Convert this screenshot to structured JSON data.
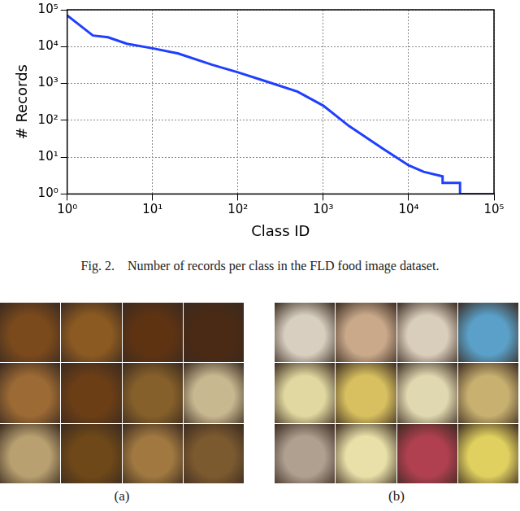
{
  "chart_data": {
    "type": "line",
    "x": [
      1,
      2,
      3,
      5,
      10,
      20,
      50,
      100,
      200,
      500,
      1000,
      2000,
      5000,
      10000,
      15000,
      25000,
      25000,
      40000,
      40000,
      100000
    ],
    "values": [
      70000,
      20000,
      18000,
      12000,
      9000,
      6500,
      3200,
      2000,
      1200,
      600,
      250,
      70,
      17,
      6,
      4,
      3,
      2,
      2,
      1,
      1
    ],
    "color": "#1f3fff",
    "x_label": "Class ID",
    "y_label": "# Records",
    "log": true,
    "xlim": [
      1,
      100000
    ],
    "xticks": [
      {
        "value": 1,
        "label": "10⁰"
      },
      {
        "value": 10,
        "label": "10¹"
      },
      {
        "value": 100,
        "label": "10²"
      },
      {
        "value": 1000,
        "label": "10³"
      },
      {
        "value": 10000,
        "label": "10⁴"
      },
      {
        "value": 100000,
        "label": "10⁵"
      }
    ],
    "ylim": [
      1,
      100000
    ],
    "yticks": [
      {
        "value": 1,
        "label": "10⁰"
      },
      {
        "value": 10,
        "label": "10¹"
      },
      {
        "value": 100,
        "label": "10²"
      },
      {
        "value": 1000,
        "label": "10³"
      },
      {
        "value": 10000,
        "label": "10⁴"
      },
      {
        "value": 100000,
        "label": "10⁵"
      }
    ],
    "grid": true
  },
  "caption": "Fig. 2.    Number of records per class in the FLD food image dataset.",
  "panels": [
    {
      "label": "(a)"
    },
    {
      "label": "(b)"
    }
  ]
}
